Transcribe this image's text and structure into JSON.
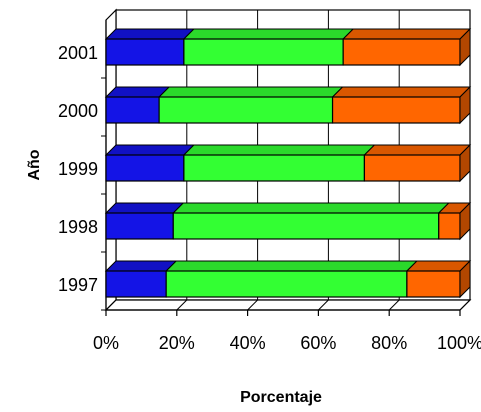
{
  "chart_data": {
    "type": "bar",
    "orientation": "horizontal",
    "stacked": "percent",
    "style": "3d",
    "categories": [
      "1997",
      "1998",
      "1999",
      "2000",
      "2001"
    ],
    "series": [
      {
        "color": "#1414e6",
        "values": [
          17,
          19,
          22,
          15,
          22
        ]
      },
      {
        "color": "#33ff33",
        "values": [
          68,
          75,
          51,
          49,
          45
        ]
      },
      {
        "color": "#ff6600",
        "values": [
          15,
          6,
          27,
          36,
          33
        ]
      }
    ],
    "xlabel": "Porcentaje",
    "ylabel": "Año",
    "xlim": [
      0,
      100
    ],
    "x_ticks": [
      "0%",
      "20%",
      "40%",
      "60%",
      "80%",
      "100%"
    ],
    "grid": true,
    "legend": "none"
  }
}
